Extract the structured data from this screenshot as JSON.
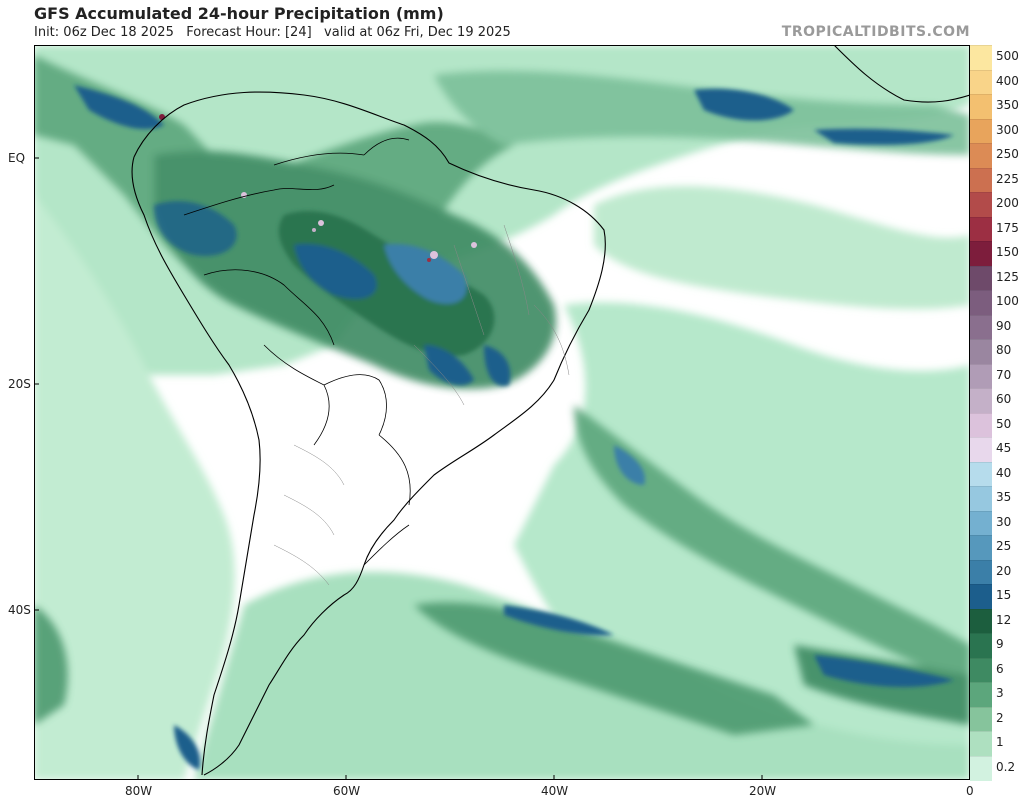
{
  "title": "GFS Accumulated 24-hour Precipitation (mm)",
  "subtitle": "Init: 06z Dec 18 2025   Forecast Hour: [24]   valid at 06z Fri, Dec 19 2025",
  "brand": "TROPICALTIDBITS.COM",
  "latitude_labels": [
    "EQ",
    "20S",
    "40S"
  ],
  "longitude_labels": [
    "80W",
    "60W",
    "40W",
    "20W",
    "0"
  ],
  "colorbar": [
    {
      "label": "500",
      "color": "#fce7a0"
    },
    {
      "label": "400",
      "color": "#f9d489"
    },
    {
      "label": "350",
      "color": "#f3c070"
    },
    {
      "label": "300",
      "color": "#e8a45c"
    },
    {
      "label": "250",
      "color": "#dc8b55"
    },
    {
      "label": "225",
      "color": "#cc7050"
    },
    {
      "label": "200",
      "color": "#b24b4a"
    },
    {
      "label": "175",
      "color": "#9c2f43"
    },
    {
      "label": "150",
      "color": "#7d1d3c"
    },
    {
      "label": "125",
      "color": "#6e4a6a"
    },
    {
      "label": "100",
      "color": "#7c5d7e"
    },
    {
      "label": "90",
      "color": "#8a6f8e"
    },
    {
      "label": "80",
      "color": "#9a86a0"
    },
    {
      "label": "70",
      "color": "#b09cb6"
    },
    {
      "label": "60",
      "color": "#c4b0c8"
    },
    {
      "label": "50",
      "color": "#dcc2dc"
    },
    {
      "label": "45",
      "color": "#e8d8ec"
    },
    {
      "label": "40",
      "color": "#b6dcec"
    },
    {
      "label": "35",
      "color": "#96c8e0"
    },
    {
      "label": "30",
      "color": "#74b0d0"
    },
    {
      "label": "25",
      "color": "#5698bc"
    },
    {
      "label": "20",
      "color": "#3b7fa8"
    },
    {
      "label": "15",
      "color": "#1c5e8c"
    },
    {
      "label": "12",
      "color": "#1c5e3e"
    },
    {
      "label": "9",
      "color": "#2a7450"
    },
    {
      "label": "6",
      "color": "#3e8a62"
    },
    {
      "label": "3",
      "color": "#5ca67c"
    },
    {
      "label": "2",
      "color": "#86c49c"
    },
    {
      "label": "1",
      "color": "#aee0c0"
    },
    {
      "label": "0.2",
      "color": "#d2f2e0"
    }
  ]
}
